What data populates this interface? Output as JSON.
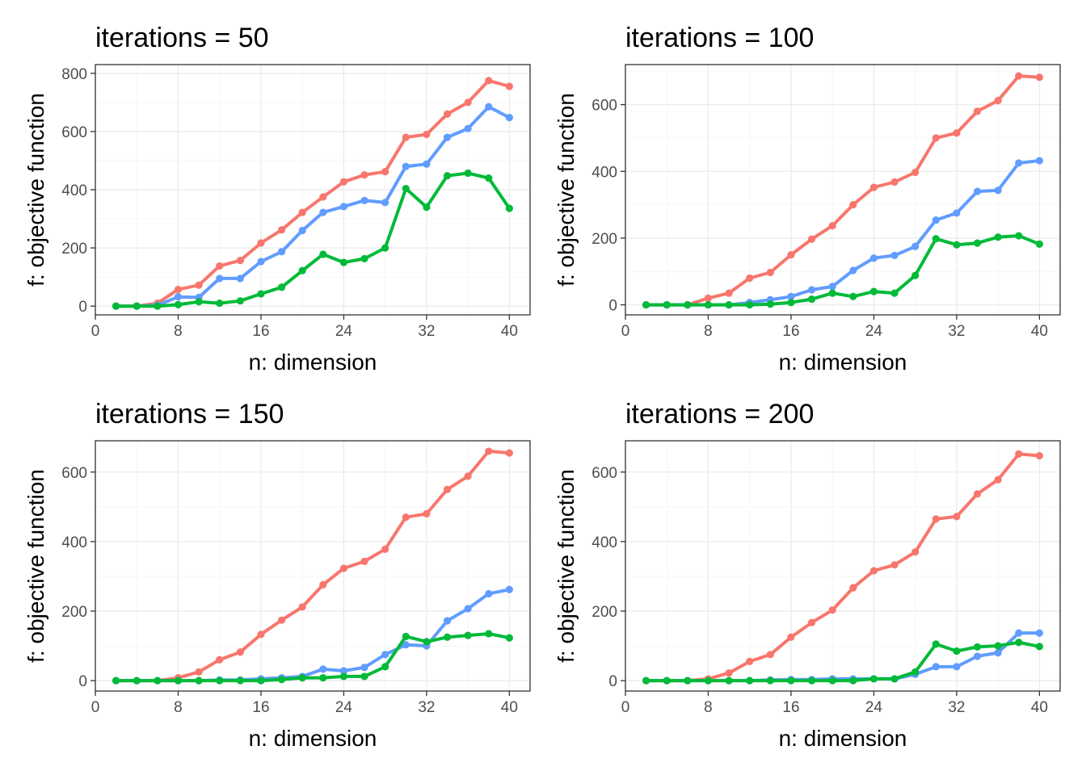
{
  "chart_data": [
    {
      "type": "line",
      "title": "iterations = 50",
      "xlabel": "n: dimension",
      "ylabel": "f: objective function",
      "xlim": [
        0,
        42
      ],
      "ylim": [
        -30,
        830
      ],
      "xticks": [
        0,
        8,
        16,
        24,
        32,
        40
      ],
      "yticks": [
        0,
        200,
        400,
        600,
        800
      ],
      "grid": true,
      "legend": "none",
      "x": [
        2,
        4,
        6,
        8,
        10,
        12,
        14,
        16,
        18,
        20,
        22,
        24,
        26,
        28,
        30,
        32,
        34,
        36,
        38,
        40
      ],
      "series": [
        {
          "color": "#F8766D",
          "values": [
            0,
            0,
            10,
            57,
            72,
            138,
            157,
            217,
            262,
            322,
            375,
            427,
            451,
            462,
            580,
            590,
            660,
            700,
            775,
            755
          ]
        },
        {
          "color": "#619CFF",
          "values": [
            0,
            0,
            3,
            32,
            30,
            95,
            95,
            153,
            187,
            260,
            322,
            342,
            363,
            356,
            480,
            488,
            580,
            610,
            685,
            648
          ]
        },
        {
          "color": "#00BA38",
          "values": [
            0,
            0,
            0,
            5,
            15,
            10,
            18,
            42,
            65,
            122,
            178,
            150,
            163,
            200,
            404,
            340,
            448,
            457,
            440,
            336
          ]
        }
      ]
    },
    {
      "type": "line",
      "title": "iterations = 100",
      "xlabel": "n: dimension",
      "ylabel": "f: objective function",
      "xlim": [
        0,
        42
      ],
      "ylim": [
        -30,
        720
      ],
      "xticks": [
        0,
        8,
        16,
        24,
        32,
        40
      ],
      "yticks": [
        0,
        200,
        400,
        600
      ],
      "grid": true,
      "legend": "none",
      "x": [
        2,
        4,
        6,
        8,
        10,
        12,
        14,
        16,
        18,
        20,
        22,
        24,
        26,
        28,
        30,
        32,
        34,
        36,
        38,
        40
      ],
      "series": [
        {
          "color": "#F8766D",
          "values": [
            0,
            0,
            0,
            20,
            35,
            80,
            97,
            150,
            197,
            237,
            300,
            352,
            368,
            397,
            500,
            515,
            580,
            612,
            686,
            682
          ]
        },
        {
          "color": "#619CFF",
          "values": [
            0,
            0,
            0,
            0,
            0,
            7,
            15,
            25,
            45,
            55,
            103,
            140,
            148,
            175,
            254,
            275,
            340,
            343,
            425,
            432
          ]
        },
        {
          "color": "#00BA38",
          "values": [
            0,
            0,
            0,
            0,
            0,
            0,
            2,
            7,
            17,
            35,
            25,
            40,
            35,
            88,
            198,
            180,
            185,
            203,
            207,
            182
          ]
        }
      ]
    },
    {
      "type": "line",
      "title": "iterations = 150",
      "xlabel": "n: dimension",
      "ylabel": "f: objective function",
      "xlim": [
        0,
        42
      ],
      "ylim": [
        -30,
        690
      ],
      "xticks": [
        0,
        8,
        16,
        24,
        32,
        40
      ],
      "yticks": [
        0,
        200,
        400,
        600
      ],
      "grid": true,
      "legend": "none",
      "x": [
        2,
        4,
        6,
        8,
        10,
        12,
        14,
        16,
        18,
        20,
        22,
        24,
        26,
        28,
        30,
        32,
        34,
        36,
        38,
        40
      ],
      "series": [
        {
          "color": "#F8766D",
          "values": [
            0,
            0,
            0,
            8,
            25,
            60,
            82,
            133,
            174,
            212,
            276,
            323,
            343,
            378,
            470,
            480,
            550,
            588,
            660,
            655
          ]
        },
        {
          "color": "#619CFF",
          "values": [
            0,
            0,
            0,
            0,
            0,
            2,
            2,
            5,
            8,
            12,
            33,
            28,
            38,
            75,
            103,
            100,
            172,
            207,
            250,
            262
          ]
        },
        {
          "color": "#00BA38",
          "values": [
            0,
            0,
            0,
            0,
            0,
            0,
            0,
            0,
            3,
            8,
            8,
            12,
            12,
            40,
            127,
            112,
            125,
            130,
            135,
            123
          ]
        }
      ]
    },
    {
      "type": "line",
      "title": "iterations = 200",
      "xlabel": "n: dimension",
      "ylabel": "f: objective function",
      "xlim": [
        0,
        42
      ],
      "ylim": [
        -30,
        690
      ],
      "xticks": [
        0,
        8,
        16,
        24,
        32,
        40
      ],
      "yticks": [
        0,
        200,
        400,
        600
      ],
      "grid": true,
      "legend": "none",
      "x": [
        2,
        4,
        6,
        8,
        10,
        12,
        14,
        16,
        18,
        20,
        22,
        24,
        26,
        28,
        30,
        32,
        34,
        36,
        38,
        40
      ],
      "series": [
        {
          "color": "#F8766D",
          "values": [
            0,
            0,
            0,
            5,
            22,
            55,
            75,
            125,
            167,
            203,
            267,
            316,
            333,
            370,
            465,
            472,
            537,
            578,
            652,
            647
          ]
        },
        {
          "color": "#619CFF",
          "values": [
            0,
            0,
            0,
            0,
            0,
            0,
            2,
            3,
            3,
            5,
            5,
            5,
            5,
            18,
            40,
            40,
            70,
            80,
            137,
            137
          ]
        },
        {
          "color": "#00BA38",
          "values": [
            0,
            0,
            0,
            0,
            0,
            0,
            0,
            0,
            0,
            0,
            0,
            5,
            5,
            25,
            105,
            85,
            97,
            100,
            110,
            98
          ]
        }
      ]
    }
  ]
}
